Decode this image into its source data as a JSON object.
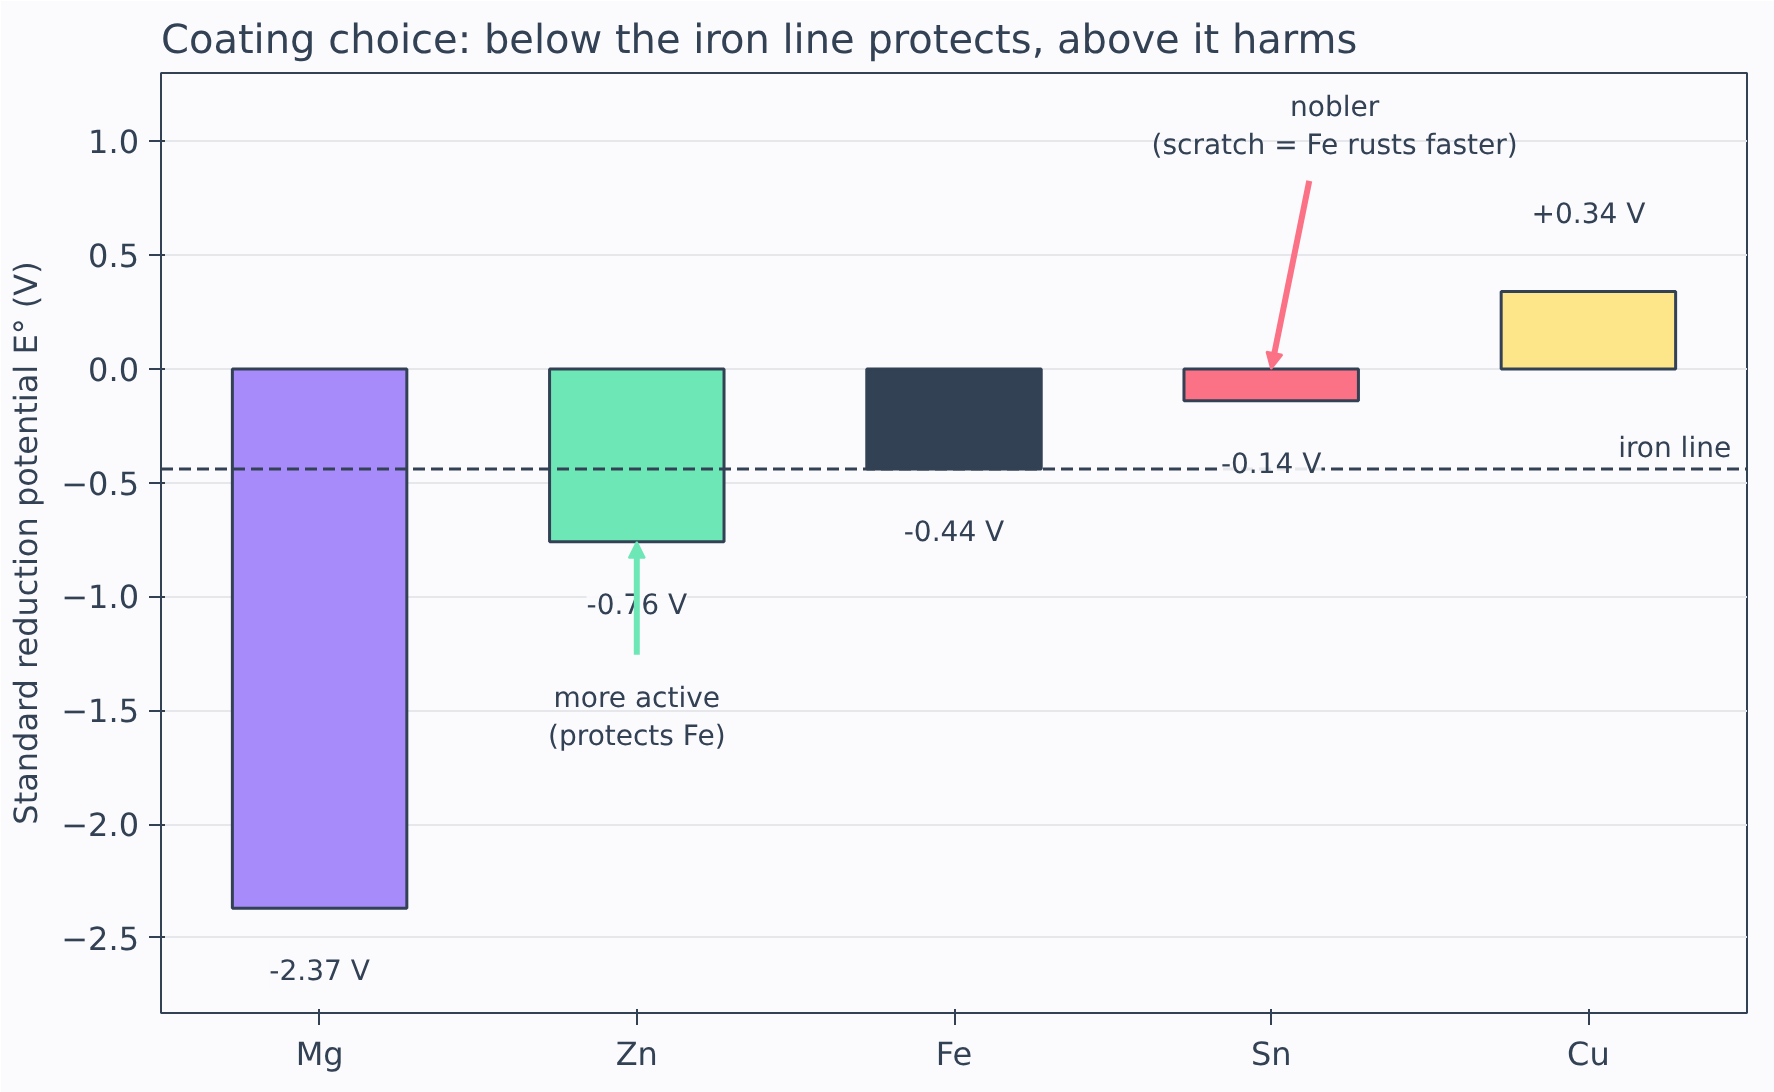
{
  "chart_data": {
    "type": "bar",
    "title": "Coating choice: below the iron line protects, above it harms",
    "ylabel": "Standard reduction potential E° (V)",
    "categories": [
      "Mg",
      "Zn",
      "Fe",
      "Sn",
      "Cu"
    ],
    "values": [
      -2.37,
      -0.76,
      -0.44,
      -0.14,
      0.34
    ],
    "colors": [
      "#a78bfa",
      "#6ee7b7",
      "#334155",
      "#fb7185",
      "#fde68a"
    ],
    "value_labels": [
      "-2.37 V",
      "-0.76 V",
      "-0.44 V",
      "-0.14 V",
      "+0.34 V"
    ],
    "ylim": [
      -2.83,
      1.3
    ],
    "yticks": [
      {
        "value": -2.5,
        "label": "−2.5"
      },
      {
        "value": -2.0,
        "label": "−2.0"
      },
      {
        "value": -1.5,
        "label": "−1.5"
      },
      {
        "value": -1.0,
        "label": "−1.0"
      },
      {
        "value": -0.5,
        "label": "−0.5"
      },
      {
        "value": 0.0,
        "label": "0.0"
      },
      0.5,
      {
        "value": 1.0,
        "label": "1.0"
      }
    ],
    "grid": "y",
    "ref_lines": [
      {
        "axis": "y",
        "value": -0.44,
        "label": "iron line",
        "color": "#334155",
        "line_style": "dashed"
      }
    ],
    "annotations": [
      {
        "text": "more active\n(protects Fe)",
        "x": "Zn",
        "y": -0.76
      },
      {
        "text": "nobler\n(scratch = Fe rusts faster)",
        "x": "Sn",
        "y": 0.0
      }
    ]
  }
}
